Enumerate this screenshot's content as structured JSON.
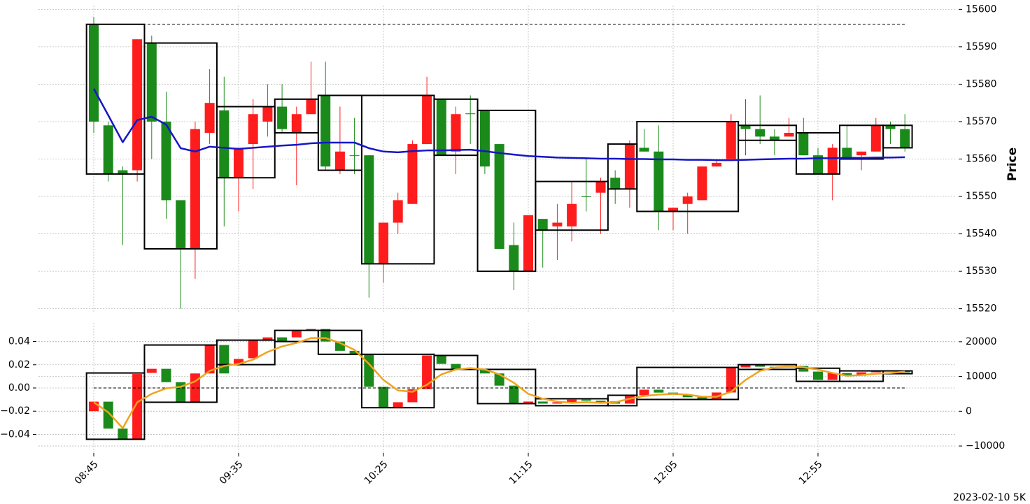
{
  "chart_data": {
    "type": "candlestick",
    "footnote": "2023-02-10 5K",
    "ylabel": "Price",
    "categories": [
      "08:45",
      null,
      null,
      null,
      null,
      null,
      null,
      null,
      null,
      null,
      "09:35",
      null,
      null,
      null,
      null,
      null,
      null,
      null,
      null,
      null,
      "10:25",
      null,
      null,
      null,
      null,
      null,
      null,
      null,
      null,
      null,
      "11:15",
      null,
      null,
      null,
      null,
      null,
      null,
      null,
      null,
      null,
      "12:05",
      null,
      null,
      null,
      null,
      null,
      null,
      null,
      null,
      null,
      "12:55",
      null,
      null,
      null,
      null,
      null,
      null
    ],
    "ylim": [
      15519,
      15601
    ],
    "yticks": [
      15520,
      15530,
      15540,
      15550,
      15560,
      15570,
      15580,
      15590,
      15600
    ],
    "grid": true,
    "up_color": "#ff1c1c",
    "down_color": "#1a8a1a",
    "open": [
      15596,
      15569,
      15557,
      15557,
      15591,
      15570,
      15549,
      15536,
      15567,
      15573,
      15555,
      15564,
      15570,
      15574,
      15567,
      15572,
      15577,
      15557,
      15561,
      15561,
      15532,
      15543,
      15548,
      15564,
      15576,
      15562,
      15572.2,
      15573,
      15564,
      15537,
      15530,
      15544,
      15542,
      15542,
      15550,
      15551,
      15555,
      15552,
      15563,
      15562,
      15546,
      15548,
      15549,
      15558,
      15560,
      15569,
      15568,
      15566,
      15566,
      15567,
      15561,
      15556,
      15563,
      15561,
      15562,
      15569,
      15568
    ],
    "high": [
      15598,
      15570,
      15558,
      15592,
      15593,
      15578,
      15549,
      15570,
      15584,
      15582,
      15563,
      15576,
      15580,
      15580,
      15574,
      15586,
      15586,
      15574,
      15571,
      15561,
      15543,
      15551,
      15565,
      15582,
      15576,
      15574,
      15577,
      15573,
      15564,
      15543,
      15545,
      15544,
      15548,
      15554,
      15560,
      15555,
      15557,
      15565,
      15568,
      15569,
      15547,
      15551,
      15558,
      15560,
      15572,
      15576,
      15577,
      15568,
      15571,
      15571,
      15563,
      15564,
      15569,
      15562,
      15571,
      15570,
      15572
    ],
    "low": [
      15567,
      15554,
      15537,
      15554,
      15560,
      15544,
      15520,
      15528,
      15564,
      15542,
      15546,
      15552,
      15566,
      15567,
      15553,
      15572,
      15557,
      15556,
      15556,
      15523,
      15527,
      15540,
      15548,
      15564,
      15561,
      15556,
      15564,
      15556,
      15536,
      15525,
      15530,
      15531,
      15533,
      15538,
      15546,
      15540,
      15548,
      15547,
      15562,
      15541,
      15541,
      15540,
      15549,
      15558,
      15560,
      15561,
      15564,
      15561,
      15566,
      15561,
      15556,
      15549,
      15560,
      15557,
      15562,
      15564,
      15562
    ],
    "close": [
      15570,
      15556,
      15556,
      15592,
      15570,
      15549,
      15536,
      15568,
      15575,
      15555,
      15563,
      15572,
      15574,
      15568,
      15572,
      15576,
      15558,
      15562,
      15561,
      15532,
      15543,
      15549,
      15564,
      15577,
      15561,
      15572,
      15572,
      15558,
      15536,
      15530,
      15545,
      15541,
      15543,
      15548,
      15550,
      15554,
      15552,
      15564,
      15562,
      15546,
      15547,
      15550,
      15558,
      15559,
      15570,
      15568,
      15566,
      15565,
      15567,
      15561,
      15556,
      15563,
      15560,
      15562,
      15569,
      15568,
      15563
    ],
    "ma": {
      "color": "#1616c8",
      "values": [
        15578.8,
        15571.7,
        15564.5,
        15570.4,
        15571.3,
        15569.2,
        15562.9,
        15562.0,
        15563.3,
        15563.0,
        15562.7,
        15563.0,
        15563.3,
        15563.6,
        15563.8,
        15564.2,
        15564.4,
        15564.4,
        15564.4,
        15562.9,
        15562.0,
        15561.8,
        15562.1,
        15562.3,
        15562.3,
        15562.4,
        15562.5,
        15562.1,
        15561.6,
        15561.2,
        15560.8,
        15560.6,
        15560.4,
        15560.3,
        15560.2,
        15560.1,
        15560.1,
        15560.0,
        15560.0,
        15559.9,
        15559.9,
        15559.8,
        15559.8,
        15559.7,
        15559.7,
        15559.8,
        15559.9,
        15560.0,
        15560.1,
        15560.1,
        15560.2,
        15560.2,
        15560.3,
        15560.3,
        15560.4,
        15560.4,
        15560.5
      ]
    },
    "hline": 15596,
    "boxes": [
      {
        "start": 0,
        "end": 3,
        "high": 15596,
        "low": 15556
      },
      {
        "start": 4,
        "end": 8,
        "high": 15591,
        "low": 15536
      },
      {
        "start": 9,
        "end": 12,
        "high": 15574,
        "low": 15555
      },
      {
        "start": 13,
        "end": 15,
        "high": 15576,
        "low": 15567
      },
      {
        "start": 16,
        "end": 18,
        "high": 15577,
        "low": 15557
      },
      {
        "start": 19,
        "end": 23,
        "high": 15577,
        "low": 15532
      },
      {
        "start": 24,
        "end": 26,
        "high": 15576,
        "low": 15561
      },
      {
        "start": 27,
        "end": 30,
        "high": 15573,
        "low": 15530
      },
      {
        "start": 31,
        "end": 35,
        "high": 15554,
        "low": 15541
      },
      {
        "start": 36,
        "end": 37,
        "high": 15564,
        "low": 15552
      },
      {
        "start": 38,
        "end": 44,
        "high": 15570,
        "low": 15546
      },
      {
        "start": 45,
        "end": 48,
        "high": 15569,
        "low": 15565
      },
      {
        "start": 49,
        "end": 51,
        "high": 15567,
        "low": 15556
      },
      {
        "start": 52,
        "end": 54,
        "high": 15569,
        "low": 15560
      },
      {
        "start": 55,
        "end": 56,
        "high": 15569,
        "low": 15563
      }
    ],
    "lower": {
      "type": "candlestick",
      "ylim": [
        -0.056,
        0.056
      ],
      "yticks": [
        {
          "value": -0.04,
          "label": "−0.04"
        },
        {
          "value": -0.02,
          "label": "−0.02"
        },
        {
          "value": 0,
          "label": "0.00"
        },
        0.02,
        0.04
      ],
      "y2lim": [
        -12000,
        25400
      ],
      "y2ticks": [
        {
          "value": -10000,
          "label": "−10000"
        },
        0,
        10000,
        20000
      ],
      "open": [
        -0.02,
        -0.0118,
        -0.035,
        -0.044,
        0.013,
        0.0165,
        0.005,
        -0.0125,
        0.0125,
        0.037,
        0.0207,
        0.0256,
        0.0406,
        0.0436,
        0.0436,
        0.0496,
        0.0508,
        0.04,
        0.032,
        0.029,
        0.001,
        -0.017,
        -0.0123,
        -0.001,
        0.028,
        0.0207,
        0.016,
        0.016,
        0.0125,
        0.002,
        -0.0135,
        -0.0117,
        -0.0135,
        -0.0123,
        -0.01,
        -0.011,
        -0.0115,
        -0.0135,
        -0.0063,
        -0.0015,
        -0.004,
        -0.0057,
        -0.008,
        -0.0093,
        -0.0039,
        0.0177,
        0.0201,
        0.0183,
        0.0177,
        0.0189,
        0.0141,
        0.0069,
        0.0129,
        0.0105,
        0.0135,
        0.0147,
        0.0141
      ],
      "close": [
        -0.0118,
        -0.035,
        -0.044,
        0.012,
        0.0165,
        0.005,
        -0.0125,
        0.0125,
        0.037,
        0.0125,
        0.025,
        0.041,
        0.0436,
        0.04,
        0.0496,
        0.0508,
        0.04,
        0.032,
        0.029,
        0.001,
        -0.017,
        -0.0123,
        -0.001,
        0.028,
        0.0207,
        0.016,
        0.016,
        0.0125,
        0.002,
        -0.0135,
        -0.0117,
        -0.0135,
        -0.0123,
        -0.01,
        -0.011,
        -0.0125,
        -0.0135,
        -0.0063,
        -0.0015,
        -0.004,
        -0.0057,
        -0.008,
        -0.0093,
        -0.0039,
        0.0177,
        0.0201,
        0.0183,
        0.0177,
        0.0189,
        0.0141,
        0.0069,
        0.0129,
        0.0105,
        0.0135,
        0.0147,
        0.0151,
        0.0135
      ],
      "line": {
        "color": "#f0a31c",
        "values": [
          -0.0123,
          -0.021,
          -0.0346,
          -0.0123,
          -0.0051,
          -0.0003,
          0.001,
          0.0057,
          0.0147,
          0.019,
          0.0207,
          0.0244,
          0.031,
          0.0358,
          0.0388,
          0.043,
          0.043,
          0.0388,
          0.0328,
          0.0207,
          0.0069,
          -0.0021,
          -0.0033,
          0.0027,
          0.0117,
          0.0159,
          0.0171,
          0.0159,
          0.0117,
          0.0045,
          -0.0051,
          -0.0093,
          -0.0117,
          -0.0129,
          -0.0123,
          -0.0129,
          -0.0123,
          -0.0093,
          -0.0069,
          -0.0057,
          -0.0051,
          -0.0057,
          -0.0075,
          -0.0075,
          -0.0033,
          0.0069,
          0.0147,
          0.0177,
          0.0183,
          0.0177,
          0.0159,
          0.0129,
          0.0105,
          0.0111,
          0.0123,
          0.0129,
          0.0141
        ]
      },
      "hline": 0,
      "boxes": [
        {
          "start": 0,
          "end": 3,
          "high": 0.0129,
          "low": -0.0442
        },
        {
          "start": 4,
          "end": 8,
          "high": 0.037,
          "low": -0.0123
        },
        {
          "start": 9,
          "end": 12,
          "high": 0.0412,
          "low": 0.0201
        },
        {
          "start": 13,
          "end": 15,
          "high": 0.0496,
          "low": 0.04
        },
        {
          "start": 16,
          "end": 18,
          "high": 0.0496,
          "low": 0.029
        },
        {
          "start": 19,
          "end": 23,
          "high": 0.029,
          "low": -0.017
        },
        {
          "start": 24,
          "end": 26,
          "high": 0.028,
          "low": 0.016
        },
        {
          "start": 27,
          "end": 30,
          "high": 0.016,
          "low": -0.0135
        },
        {
          "start": 31,
          "end": 35,
          "high": -0.0093,
          "low": -0.0153
        },
        {
          "start": 36,
          "end": 37,
          "high": -0.0063,
          "low": -0.0153
        },
        {
          "start": 38,
          "end": 44,
          "high": 0.0177,
          "low": -0.0099
        },
        {
          "start": 45,
          "end": 48,
          "high": 0.0201,
          "low": 0.016
        },
        {
          "start": 49,
          "end": 51,
          "high": 0.017,
          "low": 0.0057
        },
        {
          "start": 52,
          "end": 54,
          "high": 0.0147,
          "low": 0.0057
        },
        {
          "start": 55,
          "end": 56,
          "high": 0.0147,
          "low": 0.0123
        }
      ]
    }
  }
}
